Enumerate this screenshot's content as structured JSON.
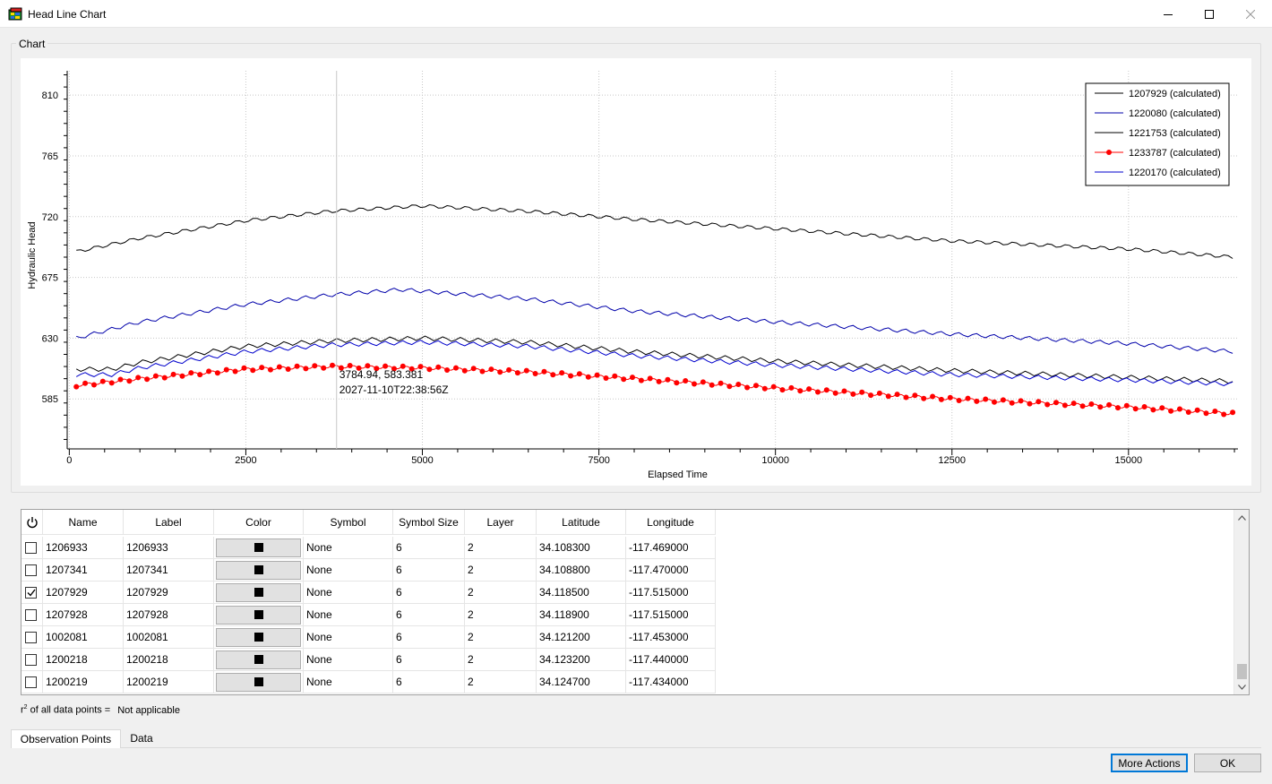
{
  "window": {
    "title": "Head Line Chart",
    "icon": "app-grid-icon"
  },
  "group": {
    "label": "Chart"
  },
  "chart_data": {
    "type": "line",
    "xlabel": "Elapsed Time",
    "ylabel": "Hydraulic Head",
    "xlim": [
      -30,
      16550
    ],
    "ylim": [
      548,
      828
    ],
    "x_ticks": [
      0,
      2500,
      5000,
      7500,
      10000,
      12500,
      15000
    ],
    "y_ticks": [
      585,
      630,
      675,
      720,
      765,
      810
    ],
    "grid": true,
    "legend": "top-right",
    "series": [
      {
        "name": "1207929 (calculated)",
        "color": "#000000",
        "marker": "none",
        "start": 694,
        "end": 690,
        "points": [
          [
            100,
            694
          ],
          [
            1000,
            704
          ],
          [
            2500,
            717
          ],
          [
            3700,
            724
          ],
          [
            5000,
            728
          ],
          [
            6500,
            724
          ],
          [
            8000,
            718
          ],
          [
            10000,
            711
          ],
          [
            12500,
            702
          ],
          [
            15000,
            696
          ],
          [
            16500,
            690
          ]
        ]
      },
      {
        "name": "1220080 (calculated)",
        "color": "#0000aa",
        "marker": "none",
        "start": 630,
        "end": 620,
        "points": [
          [
            100,
            630
          ],
          [
            1000,
            642
          ],
          [
            2500,
            655
          ],
          [
            3700,
            662
          ],
          [
            4700,
            666
          ],
          [
            6500,
            659
          ],
          [
            8000,
            650
          ],
          [
            10000,
            642
          ],
          [
            12500,
            633
          ],
          [
            15000,
            626
          ],
          [
            16500,
            620
          ]
        ]
      },
      {
        "name": "1221753 (calculated)",
        "color": "#000000",
        "marker": "none",
        "start": 607,
        "end": 598,
        "points": [
          [
            100,
            607
          ],
          [
            600,
            607
          ],
          [
            1000,
            612
          ],
          [
            2500,
            624
          ],
          [
            3700,
            628
          ],
          [
            5000,
            630
          ],
          [
            6500,
            627
          ],
          [
            8000,
            620
          ],
          [
            10000,
            613
          ],
          [
            12500,
            606
          ],
          [
            15000,
            601
          ],
          [
            16500,
            598
          ]
        ]
      },
      {
        "name": "1233787 (calculated)",
        "color": "#ff0000",
        "marker": "circle",
        "start": 595,
        "end": 574,
        "points": [
          [
            100,
            595
          ],
          [
            1000,
            600
          ],
          [
            2500,
            607
          ],
          [
            3700,
            609
          ],
          [
            5000,
            608
          ],
          [
            6500,
            605
          ],
          [
            8000,
            600
          ],
          [
            10000,
            593
          ],
          [
            12500,
            585
          ],
          [
            15000,
            579
          ],
          [
            16500,
            574
          ]
        ]
      },
      {
        "name": "1220170 (calculated)",
        "color": "#0000cc",
        "marker": "none",
        "start": 603,
        "end": 596,
        "points": [
          [
            100,
            603
          ],
          [
            600,
            603
          ],
          [
            1000,
            608
          ],
          [
            2500,
            620
          ],
          [
            3700,
            625
          ],
          [
            5000,
            627
          ],
          [
            6500,
            624
          ],
          [
            8000,
            617
          ],
          [
            10000,
            610
          ],
          [
            12500,
            603
          ],
          [
            15000,
            599
          ],
          [
            16500,
            596
          ]
        ]
      }
    ],
    "cursor": {
      "x": 3784.94,
      "y": 583.381,
      "label_values": "3784.94, 583.381",
      "label_date": "2027-11-10T22:38:56Z"
    }
  },
  "table": {
    "power_icon": "power-icon",
    "columns": [
      "Name",
      "Label",
      "Color",
      "Symbol",
      "Symbol Size",
      "Layer",
      "Latitude",
      "Longitude"
    ],
    "rows": [
      {
        "checked": false,
        "name": "1206933",
        "label": "1206933",
        "color": "#000000",
        "symbol": "None",
        "size": "6",
        "layer": "2",
        "lat": "34.108300",
        "lon": "-117.469000"
      },
      {
        "checked": false,
        "name": "1207341",
        "label": "1207341",
        "color": "#000000",
        "symbol": "None",
        "size": "6",
        "layer": "2",
        "lat": "34.108800",
        "lon": "-117.470000"
      },
      {
        "checked": true,
        "name": "1207929",
        "label": "1207929",
        "color": "#000000",
        "symbol": "None",
        "size": "6",
        "layer": "2",
        "lat": "34.118500",
        "lon": "-117.515000"
      },
      {
        "checked": false,
        "name": "1207928",
        "label": "1207928",
        "color": "#000000",
        "symbol": "None",
        "size": "6",
        "layer": "2",
        "lat": "34.118900",
        "lon": "-117.515000"
      },
      {
        "checked": false,
        "name": "1002081",
        "label": "1002081",
        "color": "#000000",
        "symbol": "None",
        "size": "6",
        "layer": "2",
        "lat": "34.121200",
        "lon": "-117.453000"
      },
      {
        "checked": false,
        "name": "1200218",
        "label": "1200218",
        "color": "#000000",
        "symbol": "None",
        "size": "6",
        "layer": "2",
        "lat": "34.123200",
        "lon": "-117.440000"
      },
      {
        "checked": false,
        "name": "1200219",
        "label": "1200219",
        "color": "#000000",
        "symbol": "None",
        "size": "6",
        "layer": "2",
        "lat": "34.124700",
        "lon": "-117.434000"
      }
    ]
  },
  "stats": {
    "r2_prefix": "r",
    "r2_sup": "2",
    "r2_suffix": " of all data points =",
    "r2_value": "Not applicable"
  },
  "tabs": [
    {
      "label": "Observation Points",
      "active": true
    },
    {
      "label": "Data",
      "active": false
    }
  ],
  "buttons": {
    "more_actions": "More Actions",
    "ok": "OK"
  }
}
